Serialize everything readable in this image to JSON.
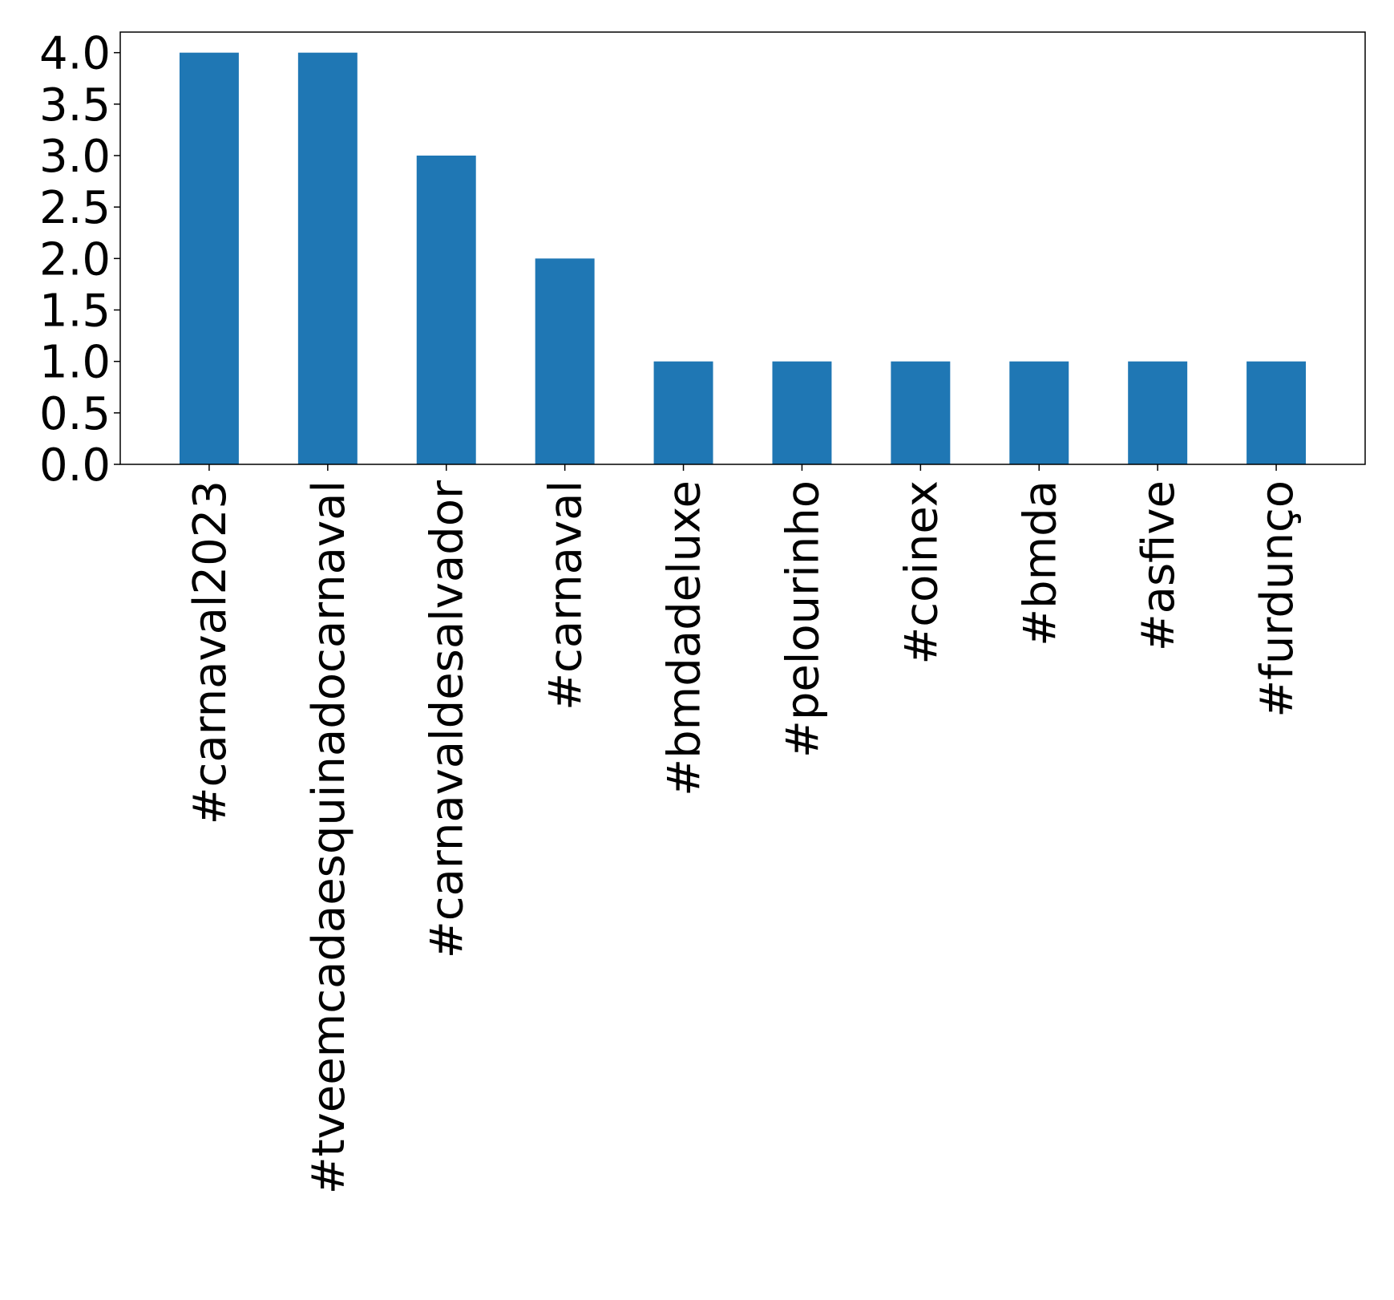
{
  "chart_data": {
    "type": "bar",
    "title": "",
    "xlabel": "",
    "ylabel": "",
    "categories": [
      "#carnaval2023",
      "#tveemcadaesquinadocarnaval",
      "#carnavaldesalvador",
      "#carnaval",
      "#bmdadeluxe",
      "#pelourinho",
      "#coinex",
      "#bmda",
      "#asfive",
      "#furdunço"
    ],
    "values": [
      4,
      4,
      3,
      2,
      1,
      1,
      1,
      1,
      1,
      1
    ],
    "ylim": [
      0,
      4.2
    ],
    "yticks": [
      "0.0",
      "0.5",
      "1.0",
      "1.5",
      "2.0",
      "2.5",
      "3.0",
      "3.5",
      "4.0"
    ],
    "bar_color": "#1f77b4",
    "grid": false,
    "legend": "none"
  }
}
